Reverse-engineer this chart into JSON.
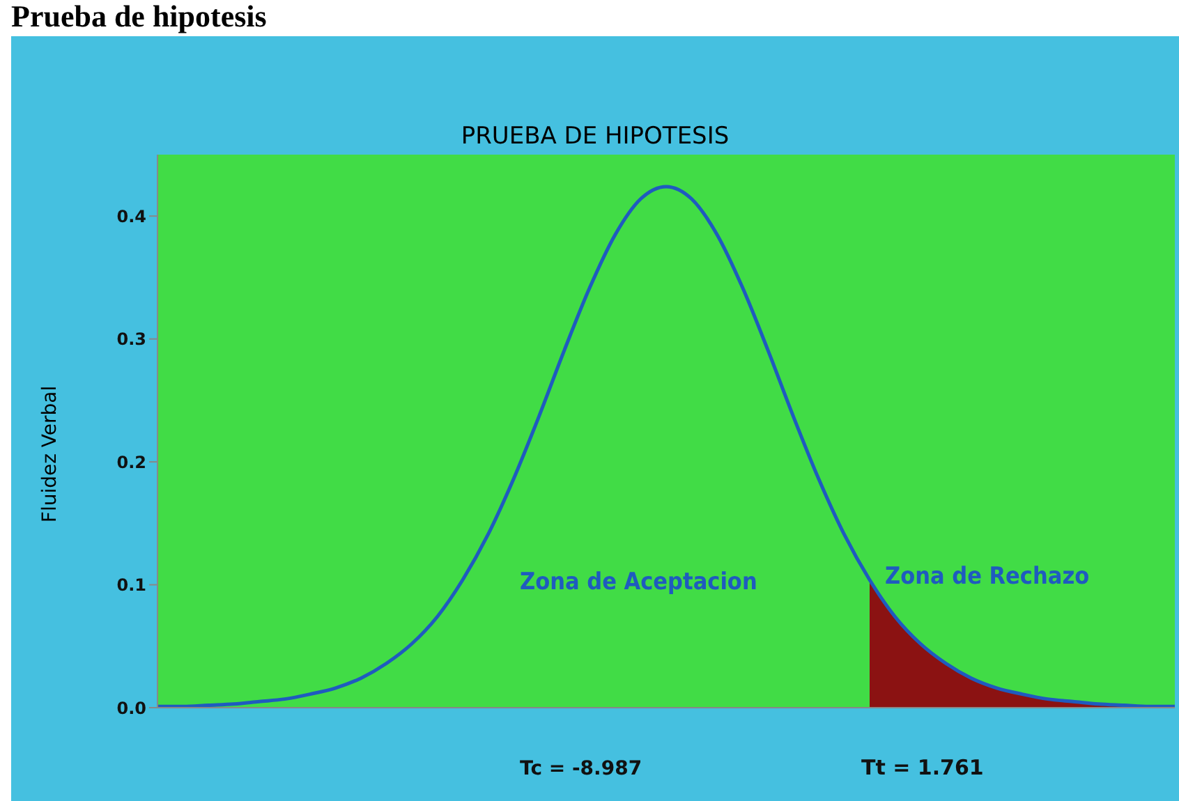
{
  "chart_data": {
    "type": "line",
    "title": "Prueba de hipotesis",
    "subtitle": "PRUEBA DE HIPOTESIS",
    "ylabel": "Fluidez Verbal",
    "annotations": [
      "Zona de Aceptacion",
      "Zona de Rechazo",
      "Tc = -8.987",
      "Tt = 1.761"
    ],
    "categories": [
      null,
      null,
      null,
      null,
      null,
      null,
      null,
      null,
      null,
      null,
      null,
      null,
      null,
      null,
      null,
      null,
      null,
      null,
      null,
      null,
      null,
      null,
      null,
      null,
      null,
      null,
      null,
      null,
      null,
      null,
      null,
      null,
      null,
      null,
      null,
      null,
      null,
      null,
      null,
      null,
      null
    ],
    "series": [
      {
        "color": "#1f5bbf",
        "values": [
          0.001,
          0.001,
          0.002,
          0.003,
          0.005,
          0.007,
          0.011,
          0.016,
          0.024,
          0.036,
          0.052,
          0.074,
          0.104,
          0.141,
          0.186,
          0.237,
          0.291,
          0.342,
          0.385,
          0.414,
          0.424,
          0.414,
          0.385,
          0.342,
          0.291,
          0.237,
          0.186,
          0.141,
          0.104,
          0.074,
          0.052,
          0.036,
          0.024,
          0.016,
          0.011,
          0.007,
          0.005,
          0.003,
          0.002,
          0.001,
          0.001
        ]
      },
      {
        "type": "area",
        "color": "#8b1212",
        "values": [
          null,
          null,
          null,
          null,
          null,
          null,
          null,
          null,
          null,
          null,
          null,
          null,
          null,
          null,
          null,
          null,
          null,
          null,
          null,
          null,
          null,
          null,
          null,
          null,
          null,
          null,
          null,
          null,
          0.104,
          0.074,
          0.052,
          0.036,
          0.024,
          0.016,
          0.011,
          0.007,
          0.005,
          0.003,
          0.002,
          0.001,
          0.001
        ]
      }
    ],
    "ylim": [
      0,
      0.45
    ],
    "yticks": [
      {
        "value": 0,
        "label": "0.0"
      },
      0.1,
      0.2,
      0.3,
      0.4
    ],
    "tick_labels": "y",
    "marker": "none",
    "line_style": "solid"
  }
}
